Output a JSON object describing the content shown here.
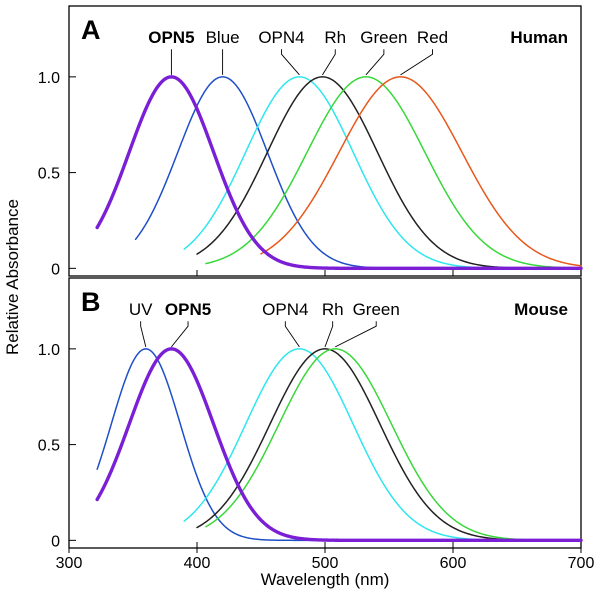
{
  "chart_data": {
    "type": "line",
    "xlabel": "Wavelength (nm)",
    "ylabel": "Relative Absorbance",
    "xlim": [
      300,
      700
    ],
    "ylim": [
      -0.04,
      1.37
    ],
    "xticks": [
      300,
      400,
      500,
      600,
      700
    ],
    "xtick_labels": [
      "300",
      "400",
      "500",
      "600",
      "700"
    ],
    "yticks": [
      0,
      0.5,
      1.0
    ],
    "ytick_labels": [
      "0",
      "0.5",
      "1.0"
    ],
    "panels": [
      {
        "letter": "A",
        "species": "Human",
        "series": [
          {
            "name": "OPN5",
            "label": "OPN5",
            "bold": true,
            "color": "#7b1fd6",
            "lambda_max": 380,
            "width": 33,
            "x_start": 322,
            "label_x": 380,
            "label_y": 1.16
          },
          {
            "name": "Blue",
            "label": "Blue",
            "bold": false,
            "color": "#1f4fc8",
            "lambda_max": 420,
            "width": 35,
            "x_start": 352,
            "label_x": 420,
            "label_y": 1.16
          },
          {
            "name": "OPN4",
            "label": "OPN4",
            "bold": false,
            "color": "#2ee6ee",
            "lambda_max": 480,
            "width": 42,
            "x_start": 390,
            "label_x": 466,
            "label_y": 1.16
          },
          {
            "name": "Rh",
            "label": "Rh",
            "bold": false,
            "color": "#222222",
            "lambda_max": 498,
            "width": 43,
            "x_start": 400,
            "label_x": 508,
            "label_y": 1.16
          },
          {
            "name": "Green",
            "label": "Green",
            "bold": false,
            "color": "#38d83a",
            "lambda_max": 532,
            "width": 46,
            "x_start": 407,
            "label_x": 546,
            "label_y": 1.16
          },
          {
            "name": "Red",
            "label": "Red",
            "bold": false,
            "color": "#e8581c",
            "lambda_max": 559,
            "width": 48,
            "x_start": 450,
            "label_x": 584,
            "label_y": 1.16
          }
        ]
      },
      {
        "letter": "B",
        "species": "Mouse",
        "series": [
          {
            "name": "UV",
            "label": "UV",
            "bold": false,
            "color": "#1f4fc8",
            "lambda_max": 360,
            "width": 27,
            "x_start": 322,
            "label_x": 356,
            "label_y": 1.16
          },
          {
            "name": "OPN5",
            "label": "OPN5",
            "bold": true,
            "color": "#7b1fd6",
            "lambda_max": 380,
            "width": 33,
            "x_start": 322,
            "label_x": 393,
            "label_y": 1.16
          },
          {
            "name": "OPN4",
            "label": "OPN4",
            "bold": false,
            "color": "#2ee6ee",
            "lambda_max": 480,
            "width": 42,
            "x_start": 390,
            "label_x": 469,
            "label_y": 1.16
          },
          {
            "name": "Rh",
            "label": "Rh",
            "bold": false,
            "color": "#222222",
            "lambda_max": 500,
            "width": 43,
            "x_start": 400,
            "label_x": 506,
            "label_y": 1.16
          },
          {
            "name": "Green",
            "label": "Green",
            "bold": false,
            "color": "#38d83a",
            "lambda_max": 508,
            "width": 44,
            "x_start": 407,
            "label_x": 540,
            "label_y": 1.16
          }
        ]
      }
    ]
  }
}
